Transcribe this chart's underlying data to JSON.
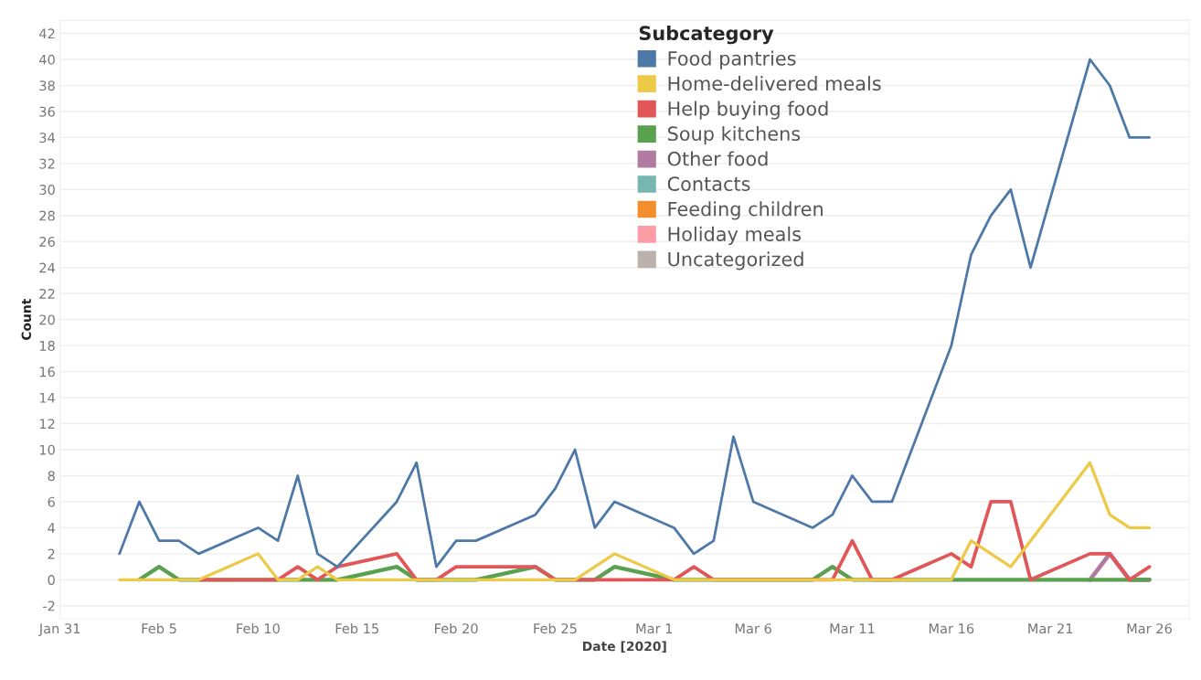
{
  "chart_data": {
    "type": "line",
    "xlabel": "Date [2020]",
    "ylabel": "Count",
    "legend_title": "Subcategory",
    "legend": "top",
    "grid": "y",
    "line_style": "solid",
    "x": [
      "2020-02-03",
      "2020-02-04",
      "2020-02-05",
      "2020-02-06",
      "2020-02-07",
      "2020-02-10",
      "2020-02-11",
      "2020-02-12",
      "2020-02-13",
      "2020-02-14",
      "2020-02-17",
      "2020-02-18",
      "2020-02-19",
      "2020-02-20",
      "2020-02-21",
      "2020-02-24",
      "2020-02-25",
      "2020-02-26",
      "2020-02-27",
      "2020-02-28",
      "2020-03-02",
      "2020-03-03",
      "2020-03-04",
      "2020-03-05",
      "2020-03-06",
      "2020-03-09",
      "2020-03-10",
      "2020-03-11",
      "2020-03-12",
      "2020-03-13",
      "2020-03-16",
      "2020-03-17",
      "2020-03-18",
      "2020-03-19",
      "2020-03-20",
      "2020-03-23",
      "2020-03-24",
      "2020-03-25",
      "2020-03-26"
    ],
    "series": [
      {
        "name": "Food pantries",
        "color": "#4e79a7",
        "values": [
          2,
          6,
          3,
          3,
          2,
          4,
          3,
          8,
          2,
          1,
          6,
          9,
          1,
          3,
          3,
          5,
          7,
          10,
          4,
          6,
          4,
          2,
          3,
          11,
          6,
          4,
          5,
          8,
          6,
          6,
          18,
          25,
          28,
          30,
          24,
          40,
          38,
          34,
          34
        ]
      },
      {
        "name": "Home-delivered meals",
        "color": "#edc948",
        "values": [
          0,
          0,
          0,
          0,
          0,
          2,
          0,
          0,
          1,
          0,
          0,
          0,
          0,
          0,
          0,
          0,
          0,
          0,
          1,
          2,
          0,
          0,
          0,
          0,
          0,
          0,
          0,
          0,
          0,
          0,
          0,
          3,
          2,
          1,
          3,
          9,
          5,
          4,
          4
        ]
      },
      {
        "name": "Help buying food",
        "color": "#e15759",
        "values": [
          null,
          null,
          null,
          null,
          0,
          0,
          0,
          1,
          0,
          1,
          2,
          0,
          0,
          1,
          1,
          1,
          0,
          0,
          0,
          0,
          0,
          1,
          0,
          0,
          0,
          0,
          0,
          3,
          0,
          0,
          2,
          1,
          6,
          6,
          0,
          2,
          2,
          0,
          1
        ]
      },
      {
        "name": "Soup kitchens",
        "color": "#59a14f",
        "values": [
          null,
          0,
          1,
          0,
          0,
          0,
          0,
          0,
          0,
          0,
          1,
          0,
          0,
          0,
          0,
          1,
          0,
          0,
          0,
          1,
          0,
          0,
          0,
          0,
          0,
          0,
          1,
          0,
          0,
          0,
          0,
          0,
          0,
          0,
          0,
          0,
          0,
          0,
          0
        ]
      },
      {
        "name": "Other food",
        "color": "#b07aa1",
        "values": [
          null,
          null,
          null,
          null,
          null,
          null,
          null,
          null,
          null,
          null,
          null,
          null,
          null,
          null,
          null,
          null,
          null,
          null,
          null,
          null,
          null,
          null,
          null,
          null,
          null,
          null,
          null,
          null,
          null,
          null,
          null,
          null,
          null,
          null,
          null,
          0,
          2,
          0,
          0
        ]
      },
      {
        "name": "Contacts",
        "color": "#76b7b2",
        "values": [
          null,
          null,
          null,
          null,
          null,
          null,
          null,
          null,
          null,
          null,
          null,
          null,
          null,
          null,
          null,
          null,
          null,
          null,
          null,
          null,
          null,
          null,
          null,
          null,
          null,
          null,
          null,
          null,
          null,
          null,
          null,
          null,
          null,
          null,
          null,
          null,
          null,
          null,
          null
        ]
      },
      {
        "name": "Feeding children",
        "color": "#f28e2b",
        "values": [
          null,
          null,
          null,
          null,
          null,
          null,
          null,
          null,
          null,
          null,
          null,
          null,
          null,
          null,
          null,
          null,
          null,
          null,
          null,
          null,
          null,
          null,
          null,
          null,
          null,
          null,
          null,
          null,
          null,
          null,
          null,
          null,
          null,
          null,
          null,
          null,
          null,
          null,
          null
        ]
      },
      {
        "name": "Holiday meals",
        "color": "#ff9da7",
        "values": [
          null,
          null,
          null,
          null,
          null,
          null,
          null,
          null,
          null,
          null,
          null,
          null,
          null,
          null,
          null,
          null,
          null,
          null,
          null,
          null,
          null,
          null,
          null,
          null,
          null,
          null,
          null,
          null,
          null,
          null,
          null,
          null,
          null,
          null,
          null,
          null,
          null,
          null,
          null
        ]
      },
      {
        "name": "Uncategorized",
        "color": "#bab0ac",
        "values": [
          null,
          null,
          null,
          null,
          null,
          null,
          null,
          null,
          null,
          null,
          null,
          null,
          null,
          null,
          null,
          null,
          null,
          null,
          null,
          null,
          null,
          null,
          null,
          null,
          null,
          null,
          null,
          null,
          null,
          null,
          null,
          null,
          null,
          null,
          null,
          null,
          null,
          null,
          null
        ]
      }
    ],
    "xlim": [
      "2020-01-31",
      "2020-03-28"
    ],
    "xticks": [
      {
        "value": "2020-01-31",
        "label": "Jan 31"
      },
      {
        "value": "2020-02-05",
        "label": "Feb 5"
      },
      {
        "value": "2020-02-10",
        "label": "Feb 10"
      },
      {
        "value": "2020-02-15",
        "label": "Feb 15"
      },
      {
        "value": "2020-02-20",
        "label": "Feb 20"
      },
      {
        "value": "2020-02-25",
        "label": "Feb 25"
      },
      {
        "value": "2020-03-01",
        "label": "Mar 1"
      },
      {
        "value": "2020-03-06",
        "label": "Mar 6"
      },
      {
        "value": "2020-03-11",
        "label": "Mar 11"
      },
      {
        "value": "2020-03-16",
        "label": "Mar 16"
      },
      {
        "value": "2020-03-21",
        "label": "Mar 21"
      },
      {
        "value": "2020-03-26",
        "label": "Mar 26"
      }
    ],
    "ylim": [
      -3,
      43
    ],
    "yticks": [
      -2,
      0,
      2,
      4,
      6,
      8,
      10,
      12,
      14,
      16,
      18,
      20,
      22,
      24,
      26,
      28,
      30,
      32,
      34,
      36,
      38,
      40,
      42
    ]
  }
}
